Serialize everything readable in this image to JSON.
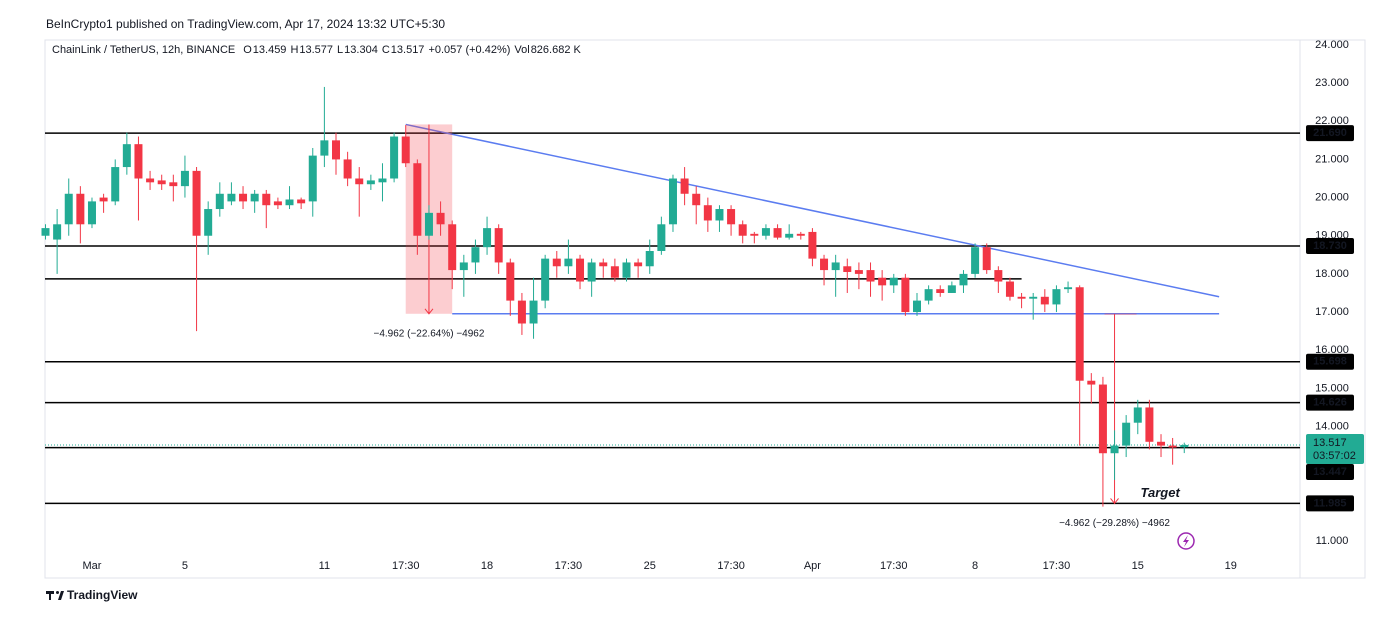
{
  "published": "BeInCrypto1 published on TradingView.com, Apr 17, 2024 13:32 UTC+5:30",
  "footer": "TradingView",
  "chart_data": {
    "type": "candlestick",
    "symbol": "ChainLink / TetherUS, 12h, BINANCE",
    "ohlc": [
      {
        "key": "O",
        "value": "13.459"
      },
      {
        "key": "H",
        "value": "13.577"
      },
      {
        "key": "L",
        "value": "13.304"
      },
      {
        "key": "C",
        "value": "13.517"
      }
    ],
    "change": "+0.057 (+0.42%)",
    "volume": {
      "key": "Vol",
      "value": "826.682 K"
    },
    "categories": [
      null,
      null,
      null,
      null,
      "Mar",
      null,
      null,
      null,
      null,
      null,
      null,
      null,
      "5",
      null,
      null,
      null,
      null,
      null,
      null,
      null,
      null,
      null,
      null,
      null,
      "11",
      null,
      null,
      null,
      null,
      null,
      null,
      "17:30",
      null,
      null,
      null,
      null,
      null,
      null,
      "18",
      null,
      null,
      null,
      null,
      null,
      null,
      "17:30",
      null,
      null,
      null,
      null,
      null,
      null,
      "25",
      null,
      null,
      null,
      null,
      null,
      null,
      "17:30",
      null,
      null,
      null,
      null,
      null,
      null,
      "Apr",
      null,
      null,
      null,
      null,
      null,
      null,
      "17:30",
      null,
      null,
      null,
      null,
      null,
      null,
      "8",
      null,
      null,
      null,
      null,
      null,
      null,
      "17:30",
      null,
      null,
      null,
      null,
      null,
      null,
      "15",
      null,
      null,
      null,
      null,
      null,
      null,
      null,
      "19",
      null,
      null,
      null,
      null,
      null,
      null
    ],
    "series": [
      {
        "up_color": "#22ab94",
        "down_color": "#f23645",
        "open": [
          19.0,
          18.9,
          19.3,
          20.1,
          19.3,
          20.0,
          19.9,
          20.8,
          21.4,
          20.5,
          20.45,
          20.4,
          20.3,
          20.7,
          19.0,
          19.7,
          19.9,
          20.1,
          19.9,
          20.1,
          19.9,
          19.8,
          19.95,
          19.9,
          21.1,
          21.5,
          21.0,
          20.5,
          20.35,
          20.4,
          20.5,
          21.6,
          20.9,
          19.0,
          19.6,
          19.3,
          18.1,
          18.3,
          18.7,
          19.2,
          18.3,
          17.3,
          16.7,
          17.3,
          18.4,
          18.2,
          18.4,
          17.8,
          18.3,
          18.2,
          17.9,
          18.3,
          18.2,
          18.6,
          19.3,
          20.5,
          20.1,
          19.8,
          19.4,
          19.7,
          19.3,
          19.05,
          19.0,
          19.2,
          18.95,
          19.05,
          19.1,
          18.4,
          18.1,
          18.2,
          18.1,
          18.1,
          17.9,
          17.7,
          17.9,
          17.0,
          17.3,
          17.6,
          17.5,
          17.7,
          18.0,
          18.7,
          18.1,
          17.8,
          17.4,
          17.35,
          17.4,
          17.2,
          17.6,
          17.65,
          15.2,
          15.1,
          13.3,
          13.5,
          14.1,
          14.5,
          13.6,
          13.5,
          13.459,
          null,
          null,
          null,
          null,
          null,
          null,
          null,
          null,
          null,
          null
        ],
        "high": [
          19.3,
          19.7,
          20.5,
          20.3,
          20.0,
          20.1,
          21.0,
          21.7,
          21.6,
          20.7,
          20.6,
          20.6,
          21.1,
          20.8,
          19.9,
          20.4,
          20.4,
          20.3,
          20.2,
          20.2,
          20.0,
          20.3,
          20.0,
          21.3,
          22.9,
          21.7,
          21.2,
          20.8,
          20.6,
          20.9,
          21.7,
          21.9,
          21.0,
          19.8,
          19.9,
          19.4,
          18.5,
          18.9,
          19.5,
          19.3,
          18.4,
          17.5,
          17.9,
          18.5,
          18.6,
          18.9,
          18.5,
          18.4,
          18.4,
          18.4,
          18.4,
          18.4,
          18.9,
          19.5,
          20.6,
          20.8,
          20.3,
          20.0,
          19.8,
          19.8,
          19.4,
          19.1,
          19.3,
          19.3,
          19.3,
          19.1,
          19.2,
          18.5,
          18.5,
          18.4,
          18.3,
          18.3,
          18.1,
          18.0,
          18.0,
          17.5,
          17.7,
          17.7,
          17.8,
          18.1,
          18.8,
          18.8,
          18.2,
          17.9,
          17.5,
          17.5,
          17.6,
          17.7,
          17.8,
          17.7,
          15.4,
          15.3,
          13.9,
          14.3,
          14.7,
          14.7,
          13.8,
          13.7,
          13.577,
          null,
          null,
          null,
          null,
          null,
          null,
          null,
          null,
          null,
          null
        ],
        "low": [
          18.9,
          18.0,
          19.0,
          18.8,
          19.2,
          19.6,
          19.8,
          20.6,
          19.4,
          20.2,
          20.2,
          19.9,
          20.0,
          16.5,
          18.5,
          19.5,
          19.8,
          19.7,
          19.6,
          19.2,
          19.7,
          19.7,
          19.7,
          19.5,
          20.8,
          20.6,
          20.3,
          19.5,
          20.2,
          19.9,
          20.4,
          20.8,
          18.5,
          18.9,
          19.0,
          17.6,
          17.4,
          18.0,
          18.5,
          18.0,
          16.9,
          16.4,
          16.3,
          17.1,
          17.9,
          18.0,
          17.6,
          17.4,
          17.9,
          17.8,
          17.8,
          17.9,
          18.0,
          18.5,
          19.1,
          19.8,
          19.3,
          19.1,
          19.1,
          19.0,
          18.8,
          18.8,
          18.9,
          18.9,
          18.9,
          18.9,
          18.2,
          17.7,
          17.4,
          17.5,
          17.6,
          17.4,
          17.3,
          17.5,
          16.9,
          16.9,
          17.2,
          17.4,
          17.5,
          17.5,
          17.9,
          18.0,
          17.5,
          17.3,
          17.1,
          16.8,
          17.0,
          17.0,
          17.5,
          13.5,
          14.6,
          11.9,
          12.6,
          13.2,
          13.8,
          13.4,
          13.2,
          13.0,
          13.304,
          null,
          null,
          null,
          null,
          null,
          null,
          null,
          null,
          null,
          null
        ],
        "close": [
          19.2,
          19.3,
          20.1,
          19.3,
          19.9,
          19.9,
          20.8,
          21.4,
          20.5,
          20.4,
          20.35,
          20.3,
          20.7,
          19.0,
          19.7,
          20.1,
          20.1,
          19.9,
          20.1,
          19.8,
          19.8,
          19.95,
          19.85,
          21.1,
          21.5,
          21.0,
          20.5,
          20.35,
          20.45,
          20.5,
          21.6,
          20.9,
          19.0,
          19.6,
          19.3,
          18.1,
          18.3,
          18.7,
          19.2,
          18.3,
          17.3,
          16.7,
          17.3,
          18.4,
          18.2,
          18.4,
          17.8,
          18.3,
          18.2,
          17.9,
          18.3,
          18.2,
          18.6,
          19.3,
          20.5,
          20.1,
          19.8,
          19.4,
          19.7,
          19.3,
          19.0,
          19.0,
          19.2,
          18.95,
          19.05,
          19.0,
          18.4,
          18.1,
          18.3,
          18.05,
          18.0,
          17.8,
          17.7,
          17.9,
          17.0,
          17.3,
          17.6,
          17.5,
          17.7,
          18.0,
          18.7,
          18.1,
          17.8,
          17.4,
          17.35,
          17.4,
          17.2,
          17.6,
          17.65,
          15.2,
          15.1,
          13.3,
          13.5,
          14.1,
          14.5,
          13.6,
          13.5,
          13.45,
          13.517,
          null,
          null,
          null,
          null,
          null,
          null,
          null,
          null,
          null,
          null
        ]
      }
    ],
    "ylim": [
      10.03,
      24.13
    ],
    "yticks": [
      {
        "value": 11,
        "label": "11.000"
      },
      {
        "value": 12,
        "label": "12.000"
      },
      {
        "value": 13,
        "label": "13.000"
      },
      {
        "value": 14,
        "label": "14.000"
      },
      {
        "value": 15,
        "label": "15.000"
      },
      {
        "value": 16,
        "label": "16.000"
      },
      {
        "value": 17,
        "label": "17.000"
      },
      {
        "value": 18,
        "label": "18.000"
      },
      {
        "value": 19,
        "label": "19.000"
      },
      {
        "value": 20,
        "label": "20.000"
      },
      {
        "value": 21,
        "label": "21.000"
      },
      {
        "value": 22,
        "label": "22.000"
      },
      {
        "value": 23,
        "label": "23.000"
      },
      {
        "value": 24,
        "label": "24.000"
      }
    ],
    "levels": [
      {
        "value": 21.69,
        "label": "21.690"
      },
      {
        "value": 18.73,
        "label": "18.730"
      },
      {
        "value": 17.87,
        "x_end": 84
      },
      {
        "value": 15.698,
        "label": "15.698"
      },
      {
        "value": 14.626,
        "label": "14.626"
      },
      {
        "value": 13.447,
        "label": "13.447"
      },
      {
        "value": 11.985,
        "label": "11.985"
      }
    ],
    "level_color": "#000000",
    "trendline": {
      "x": [
        31,
        101
      ],
      "y": [
        21.917,
        17.4
      ],
      "color": "#5b7cf0"
    },
    "support": {
      "value": 16.955,
      "x": [
        35,
        101
      ],
      "color": "#5b7cf0"
    },
    "measurements": [
      {
        "x": [
          31,
          35
        ],
        "y": [
          21.917,
          16.955
        ],
        "label": "−4.962 (−22.64%) −4962",
        "color": "#f23645"
      },
      {
        "x": [
          92,
          92
        ],
        "y": [
          16.947,
          11.985
        ],
        "label": "−4.962 (−29.28%) −4962",
        "color": "#f23645"
      }
    ],
    "target": "Target",
    "last_price": {
      "value": 13.517,
      "label": "13.517",
      "countdown": "03:57:02",
      "color": "#22ab94"
    }
  }
}
